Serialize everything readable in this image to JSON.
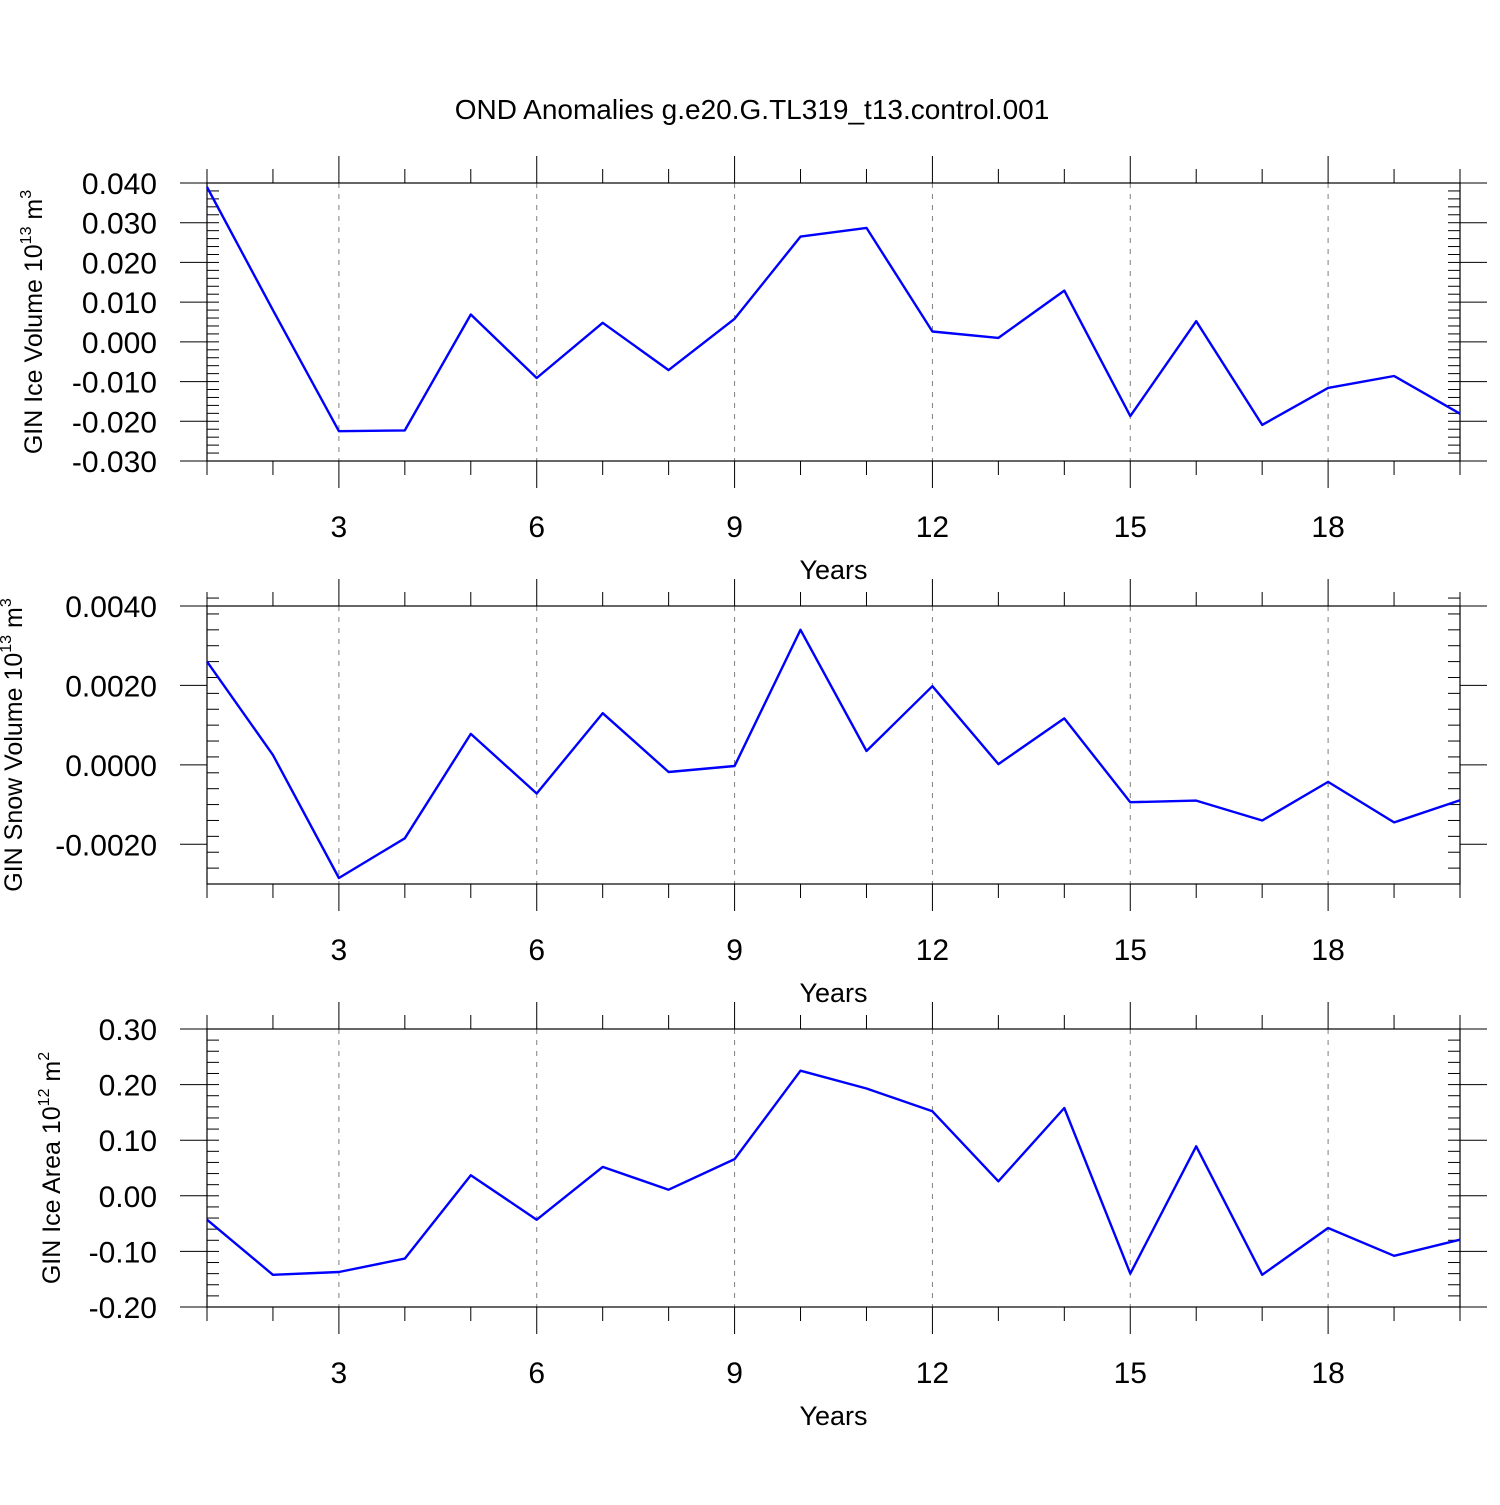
{
  "title": "OND Anomalies g.e20.G.TL319_t13.control.001",
  "colors": {
    "line": "#0000ff",
    "axis": "#000000",
    "grid": "#808080"
  },
  "chart_data": [
    {
      "type": "line",
      "ylabel": {
        "text": "GIN Ice Volume 10",
        "exp": "13",
        "unit": " m",
        "unit_exp": "3"
      },
      "xlabel": "Years",
      "xlim": [
        1,
        20
      ],
      "ylim": [
        -0.03,
        0.04
      ],
      "yticks": [
        0.04,
        0.03,
        0.02,
        0.01,
        0.0,
        -0.01,
        -0.02,
        -0.03
      ],
      "ytick_labels": [
        "0.040",
        "0.030",
        "0.020",
        "0.010",
        "0.000",
        "-0.010",
        "-0.020",
        "-0.030"
      ],
      "xticks": [
        3,
        6,
        9,
        12,
        15,
        18
      ],
      "xtick_labels": [
        "3",
        "6",
        "9",
        "12",
        "15",
        "18"
      ],
      "grid": "vertical dashed",
      "x": [
        1,
        2,
        3,
        4,
        5,
        6,
        7,
        8,
        9,
        10,
        11,
        12,
        13,
        14,
        15,
        16,
        17,
        18,
        19,
        20
      ],
      "values": [
        0.039,
        0.008,
        -0.0225,
        -0.0223,
        0.0069,
        -0.0091,
        0.0048,
        -0.0071,
        0.0058,
        0.0265,
        0.0287,
        0.0026,
        0.001,
        0.0129,
        -0.0187,
        0.0052,
        -0.0209,
        -0.0116,
        -0.0086,
        -0.0181
      ]
    },
    {
      "type": "line",
      "ylabel": {
        "text": "GIN Snow Volume 10",
        "exp": "13",
        "unit": " m",
        "unit_exp": "3"
      },
      "xlabel": "Years",
      "xlim": [
        1,
        20
      ],
      "ylim": [
        -0.003,
        0.004
      ],
      "yticks": [
        0.004,
        0.002,
        0.0,
        -0.002
      ],
      "ytick_labels": [
        "0.0040",
        "0.0020",
        "0.0000",
        "-0.0020"
      ],
      "xticks": [
        3,
        6,
        9,
        12,
        15,
        18
      ],
      "xtick_labels": [
        "3",
        "6",
        "9",
        "12",
        "15",
        "18"
      ],
      "grid": "vertical dashed",
      "x": [
        1,
        2,
        3,
        4,
        5,
        6,
        7,
        8,
        9,
        10,
        11,
        12,
        13,
        14,
        15,
        16,
        17,
        18,
        19,
        20
      ],
      "values": [
        0.0026,
        0.00025,
        -0.00285,
        -0.00185,
        0.00078,
        -0.00072,
        0.0013,
        -0.00018,
        -3e-05,
        0.0034,
        0.00035,
        0.00198,
        2e-05,
        0.00117,
        -0.00094,
        -0.0009,
        -0.0014,
        -0.00043,
        -0.00145,
        -0.00089
      ]
    },
    {
      "type": "line",
      "ylabel": {
        "text": "GIN Ice Area 10",
        "exp": "12",
        "unit": " m",
        "unit_exp": "2"
      },
      "xlabel": "Years",
      "xlim": [
        1,
        20
      ],
      "ylim": [
        -0.2,
        0.3
      ],
      "yticks": [
        0.3,
        0.2,
        0.1,
        0.0,
        -0.1,
        -0.2
      ],
      "ytick_labels": [
        "0.30",
        "0.20",
        "0.10",
        "0.00",
        "-0.10",
        "-0.20"
      ],
      "xticks": [
        3,
        6,
        9,
        12,
        15,
        18
      ],
      "xtick_labels": [
        "3",
        "6",
        "9",
        "12",
        "15",
        "18"
      ],
      "grid": "vertical dashed",
      "x": [
        1,
        2,
        3,
        4,
        5,
        6,
        7,
        8,
        9,
        10,
        11,
        12,
        13,
        14,
        15,
        16,
        17,
        18,
        19,
        20
      ],
      "values": [
        -0.043,
        -0.142,
        -0.137,
        -0.113,
        0.037,
        -0.043,
        0.052,
        0.011,
        0.066,
        0.225,
        0.193,
        0.152,
        0.026,
        0.158,
        -0.14,
        0.089,
        -0.142,
        -0.058,
        -0.108,
        -0.079
      ]
    }
  ]
}
